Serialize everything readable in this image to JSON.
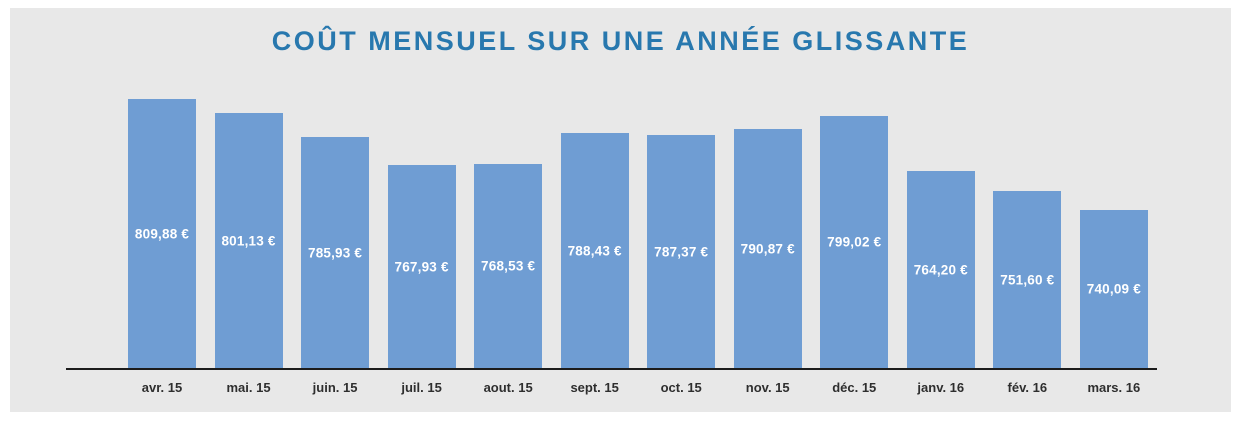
{
  "chart_data": {
    "type": "bar",
    "title": "COÛT MENSUEL SUR UNE ANNÉE GLISSANTE",
    "categories": [
      "avr. 15",
      "mai. 15",
      "juin. 15",
      "juil. 15",
      "aout. 15",
      "sept. 15",
      "oct. 15",
      "nov. 15",
      "déc. 15",
      "janv. 16",
      "fév. 16",
      "mars. 16"
    ],
    "values": [
      809.88,
      801.13,
      785.93,
      767.93,
      768.53,
      788.43,
      787.37,
      790.87,
      799.02,
      764.2,
      751.6,
      740.09
    ],
    "value_labels": [
      "809,88 €",
      "801,13 €",
      "785,93 €",
      "767,93 €",
      "768,53 €",
      "788,43 €",
      "787,37 €",
      "790,87 €",
      "799,02 €",
      "764,20 €",
      "751,60 €",
      "740,09 €"
    ],
    "xlabel": "",
    "ylabel": "",
    "ylim": [
      640,
      820
    ],
    "grid": false,
    "legend": false,
    "bar_color": "#6f9dd3",
    "title_color": "#2878ae",
    "background_color": "#e8e8e8",
    "axis_color": "#1c1c1c",
    "tick_color": "#2e2e2e",
    "value_label_color": "#ffffff"
  }
}
